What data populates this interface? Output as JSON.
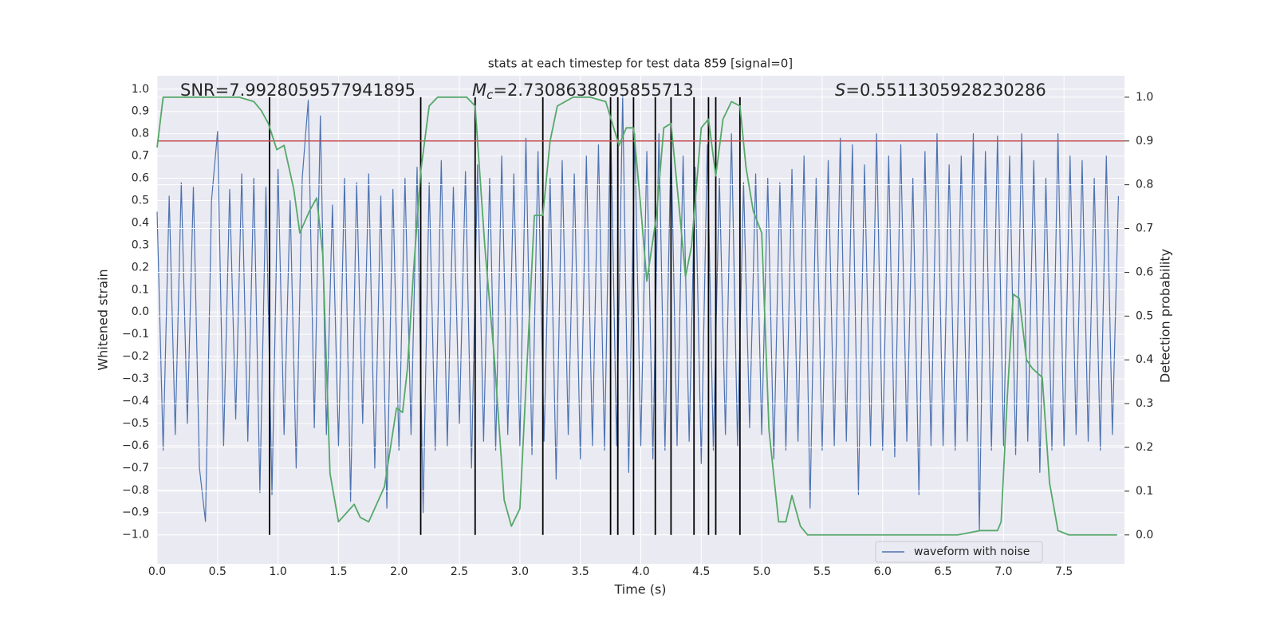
{
  "chart_data": {
    "type": "line",
    "title": "stats at each timestep for test data 859 [signal=0]",
    "xlabel": "Time (s)",
    "ylabel": "Whitened strain",
    "y2label": "Detection probability",
    "xlim": [
      0,
      8.0
    ],
    "ylim": [
      -1.13,
      1.06
    ],
    "y2lim": [
      -0.066,
      1.049
    ],
    "xticks": [
      {
        "value": 0,
        "label": "0.0"
      },
      0.5,
      {
        "value": 1,
        "label": "1.0"
      },
      1.5,
      {
        "value": 2,
        "label": "2.0"
      },
      2.5,
      {
        "value": 3,
        "label": "3.0"
      },
      3.5,
      {
        "value": 4,
        "label": "4.0"
      },
      4.5,
      {
        "value": 5,
        "label": "5.0"
      },
      5.5,
      {
        "value": 6,
        "label": "6.0"
      },
      6.5,
      {
        "value": 7,
        "label": "7.0"
      },
      7.5
    ],
    "yticks": [
      {
        "value": -1,
        "label": "−1.0"
      },
      {
        "value": -0.9,
        "label": "−0.9"
      },
      {
        "value": -0.8,
        "label": "−0.8"
      },
      {
        "value": -0.7,
        "label": "−0.7"
      },
      {
        "value": -0.6,
        "label": "−0.6"
      },
      {
        "value": -0.5,
        "label": "−0.5"
      },
      {
        "value": -0.4,
        "label": "−0.4"
      },
      {
        "value": -0.3,
        "label": "−0.3"
      },
      {
        "value": -0.2,
        "label": "−0.2"
      },
      {
        "value": -0.1,
        "label": "−0.1"
      },
      {
        "value": 0,
        "label": "0.0"
      },
      0.1,
      0.2,
      0.3,
      0.4,
      0.5,
      0.6,
      0.7,
      0.8,
      0.9,
      {
        "value": 1,
        "label": "1.0"
      }
    ],
    "y2ticks": [
      {
        "value": 0,
        "label": "0.0"
      },
      0.1,
      0.2,
      0.3,
      0.4,
      0.5,
      0.6,
      0.7,
      0.8,
      0.9,
      {
        "value": 1,
        "label": "1.0"
      }
    ],
    "grid": true,
    "legend": "lower right",
    "annotations": [
      {
        "text": "SNR=7.9928059577941895"
      },
      {
        "symbol": "M",
        "subscript": "c",
        "text": "=2.7308638095855713"
      },
      {
        "symbol": "S",
        "text": "=0.5511305928230286"
      }
    ],
    "series": [
      {
        "name": "waveform with noise",
        "color": "#4c72b0",
        "x": [
          0,
          0.05,
          0.1,
          0.15,
          0.2,
          0.25,
          0.3,
          0.35,
          0.4,
          0.45,
          0.5,
          0.55,
          0.6,
          0.65,
          0.7,
          0.75,
          0.8,
          0.85,
          0.9,
          0.95,
          1,
          1.05,
          1.1,
          1.15,
          1.2,
          1.25,
          1.3,
          1.35,
          1.4,
          1.45,
          1.5,
          1.55,
          1.6,
          1.65,
          1.7,
          1.75,
          1.8,
          1.85,
          1.9,
          1.95,
          2,
          2.05,
          2.1,
          2.15,
          2.2,
          2.25,
          2.3,
          2.35,
          2.4,
          2.45,
          2.5,
          2.55,
          2.6,
          2.65,
          2.7,
          2.75,
          2.8,
          2.85,
          2.9,
          2.95,
          3,
          3.05,
          3.1,
          3.15,
          3.2,
          3.25,
          3.3,
          3.35,
          3.4,
          3.45,
          3.5,
          3.55,
          3.6,
          3.65,
          3.7,
          3.75,
          3.8,
          3.85,
          3.9,
          3.95,
          4,
          4.05,
          4.1,
          4.15,
          4.2,
          4.25,
          4.3,
          4.35,
          4.4,
          4.45,
          4.5,
          4.55,
          4.6,
          4.65,
          4.7,
          4.75,
          4.8,
          4.85,
          4.9,
          4.95,
          5,
          5.05,
          5.1,
          5.15,
          5.2,
          5.25,
          5.3,
          5.35,
          5.4,
          5.45,
          5.5,
          5.55,
          5.6,
          5.65,
          5.7,
          5.75,
          5.8,
          5.85,
          5.9,
          5.95,
          6,
          6.05,
          6.1,
          6.15,
          6.2,
          6.25,
          6.3,
          6.35,
          6.4,
          6.45,
          6.5,
          6.55,
          6.6,
          6.65,
          6.7,
          6.75,
          6.8,
          6.85,
          6.9,
          6.95,
          7,
          7.05,
          7.1,
          7.15,
          7.2,
          7.25,
          7.3,
          7.35,
          7.4,
          7.45,
          7.5,
          7.55,
          7.6,
          7.65,
          7.7,
          7.75,
          7.8,
          7.85,
          7.9,
          7.95
        ],
        "values": [
          0.45,
          -0.62,
          0.52,
          -0.55,
          0.58,
          -0.5,
          0.56,
          -0.7,
          -0.94,
          0.5,
          0.81,
          -0.6,
          0.55,
          -0.48,
          0.62,
          -0.58,
          0.6,
          -0.81,
          0.56,
          -0.82,
          0.64,
          -0.55,
          0.5,
          -0.7,
          0.6,
          0.95,
          -0.52,
          0.88,
          -0.55,
          0.48,
          -0.6,
          0.6,
          -0.85,
          0.58,
          -0.5,
          0.62,
          -0.7,
          0.52,
          -0.88,
          0.55,
          -0.62,
          0.6,
          -0.55,
          0.65,
          -0.9,
          0.58,
          -0.62,
          0.68,
          -0.6,
          0.56,
          -0.5,
          0.63,
          -0.7,
          0.66,
          -0.58,
          0.6,
          -0.62,
          0.7,
          -0.55,
          0.62,
          -0.6,
          0.78,
          -0.64,
          0.72,
          -0.58,
          0.6,
          -0.75,
          0.68,
          -0.55,
          0.62,
          -0.66,
          0.7,
          -0.6,
          0.75,
          -0.62,
          0.88,
          -0.6,
          0.97,
          -0.72,
          0.8,
          -0.6,
          0.72,
          -0.66,
          0.8,
          -0.62,
          0.78,
          -0.6,
          0.7,
          -0.58,
          0.65,
          -0.68,
          0.75,
          -0.62,
          0.6,
          -0.55,
          0.8,
          -0.6,
          0.58,
          -0.52,
          0.62,
          -0.55,
          0.6,
          -0.66,
          0.58,
          -0.62,
          0.64,
          -0.58,
          0.7,
          -0.88,
          0.6,
          -0.62,
          0.68,
          -0.6,
          0.78,
          -0.58,
          0.75,
          -0.82,
          0.66,
          -0.6,
          0.8,
          -0.62,
          0.7,
          -0.65,
          0.75,
          -0.58,
          0.6,
          -0.82,
          0.72,
          -0.6,
          0.8,
          -0.6,
          0.66,
          -0.62,
          0.7,
          -0.58,
          0.8,
          -0.98,
          0.72,
          -0.62,
          0.79,
          -0.6,
          0.7,
          -0.64,
          0.8,
          -0.58,
          0.68,
          -0.72,
          0.6,
          -0.62,
          0.8,
          -0.6,
          0.7,
          -0.55,
          0.68,
          -0.58,
          0.6,
          -0.62,
          0.7,
          -0.55,
          0.52
        ]
      },
      {
        "color": "#55a868",
        "axis": "y2",
        "x": [
          0,
          0.05,
          0.12,
          0.68,
          0.8,
          0.86,
          0.92,
          0.99,
          1.05,
          1.13,
          1.18,
          1.26,
          1.32,
          1.37,
          1.43,
          1.5,
          1.63,
          1.68,
          1.75,
          1.88,
          1.98,
          2.03,
          2.07,
          2.12,
          2.18,
          2.25,
          2.32,
          2.46,
          2.56,
          2.63,
          2.71,
          2.79,
          2.87,
          2.93,
          3.0,
          3.07,
          3.12,
          3.19,
          3.25,
          3.31,
          3.44,
          3.58,
          3.71,
          3.82,
          3.88,
          3.94,
          3.99,
          4.05,
          4.13,
          4.19,
          4.25,
          4.32,
          4.37,
          4.42,
          4.5,
          4.56,
          4.62,
          4.68,
          4.75,
          4.82,
          4.87,
          4.93,
          5.0,
          5.06,
          5.14,
          5.2,
          5.25,
          5.32,
          5.38,
          5.82,
          6.14,
          6.62,
          6.81,
          6.88,
          6.95,
          6.98,
          7.03,
          7.08,
          7.13,
          7.19,
          7.24,
          7.32,
          7.38,
          7.45,
          7.54,
          7.94
        ],
        "values": [
          0.885,
          1.0,
          1.0,
          1.0,
          0.99,
          0.97,
          0.94,
          0.88,
          0.89,
          0.79,
          0.69,
          0.74,
          0.77,
          0.64,
          0.14,
          0.03,
          0.07,
          0.04,
          0.03,
          0.11,
          0.29,
          0.28,
          0.38,
          0.6,
          0.83,
          0.98,
          1.0,
          1.0,
          1.0,
          0.98,
          0.66,
          0.4,
          0.08,
          0.02,
          0.06,
          0.45,
          0.73,
          0.73,
          0.9,
          0.98,
          1.0,
          1.0,
          0.99,
          0.89,
          0.93,
          0.93,
          0.78,
          0.58,
          0.73,
          0.93,
          0.94,
          0.74,
          0.59,
          0.66,
          0.93,
          0.95,
          0.82,
          0.95,
          0.99,
          0.98,
          0.84,
          0.74,
          0.69,
          0.24,
          0.03,
          0.03,
          0.09,
          0.02,
          0.0,
          0.0,
          0.0,
          0.0,
          0.01,
          0.01,
          0.01,
          0.03,
          0.31,
          0.55,
          0.54,
          0.4,
          0.38,
          0.36,
          0.12,
          0.01,
          0.0,
          0.0
        ]
      }
    ],
    "hline": {
      "value": 0.9,
      "axis": "y2",
      "color": "#c44e52"
    },
    "vlines": {
      "x": [
        0.93,
        2.18,
        2.63,
        3.19,
        3.75,
        3.81,
        3.94,
        4.12,
        4.25,
        4.44,
        4.56,
        4.62,
        4.82
      ],
      "ymin": 0,
      "ymax": 1,
      "axis": "y2",
      "color": "#000000"
    }
  }
}
